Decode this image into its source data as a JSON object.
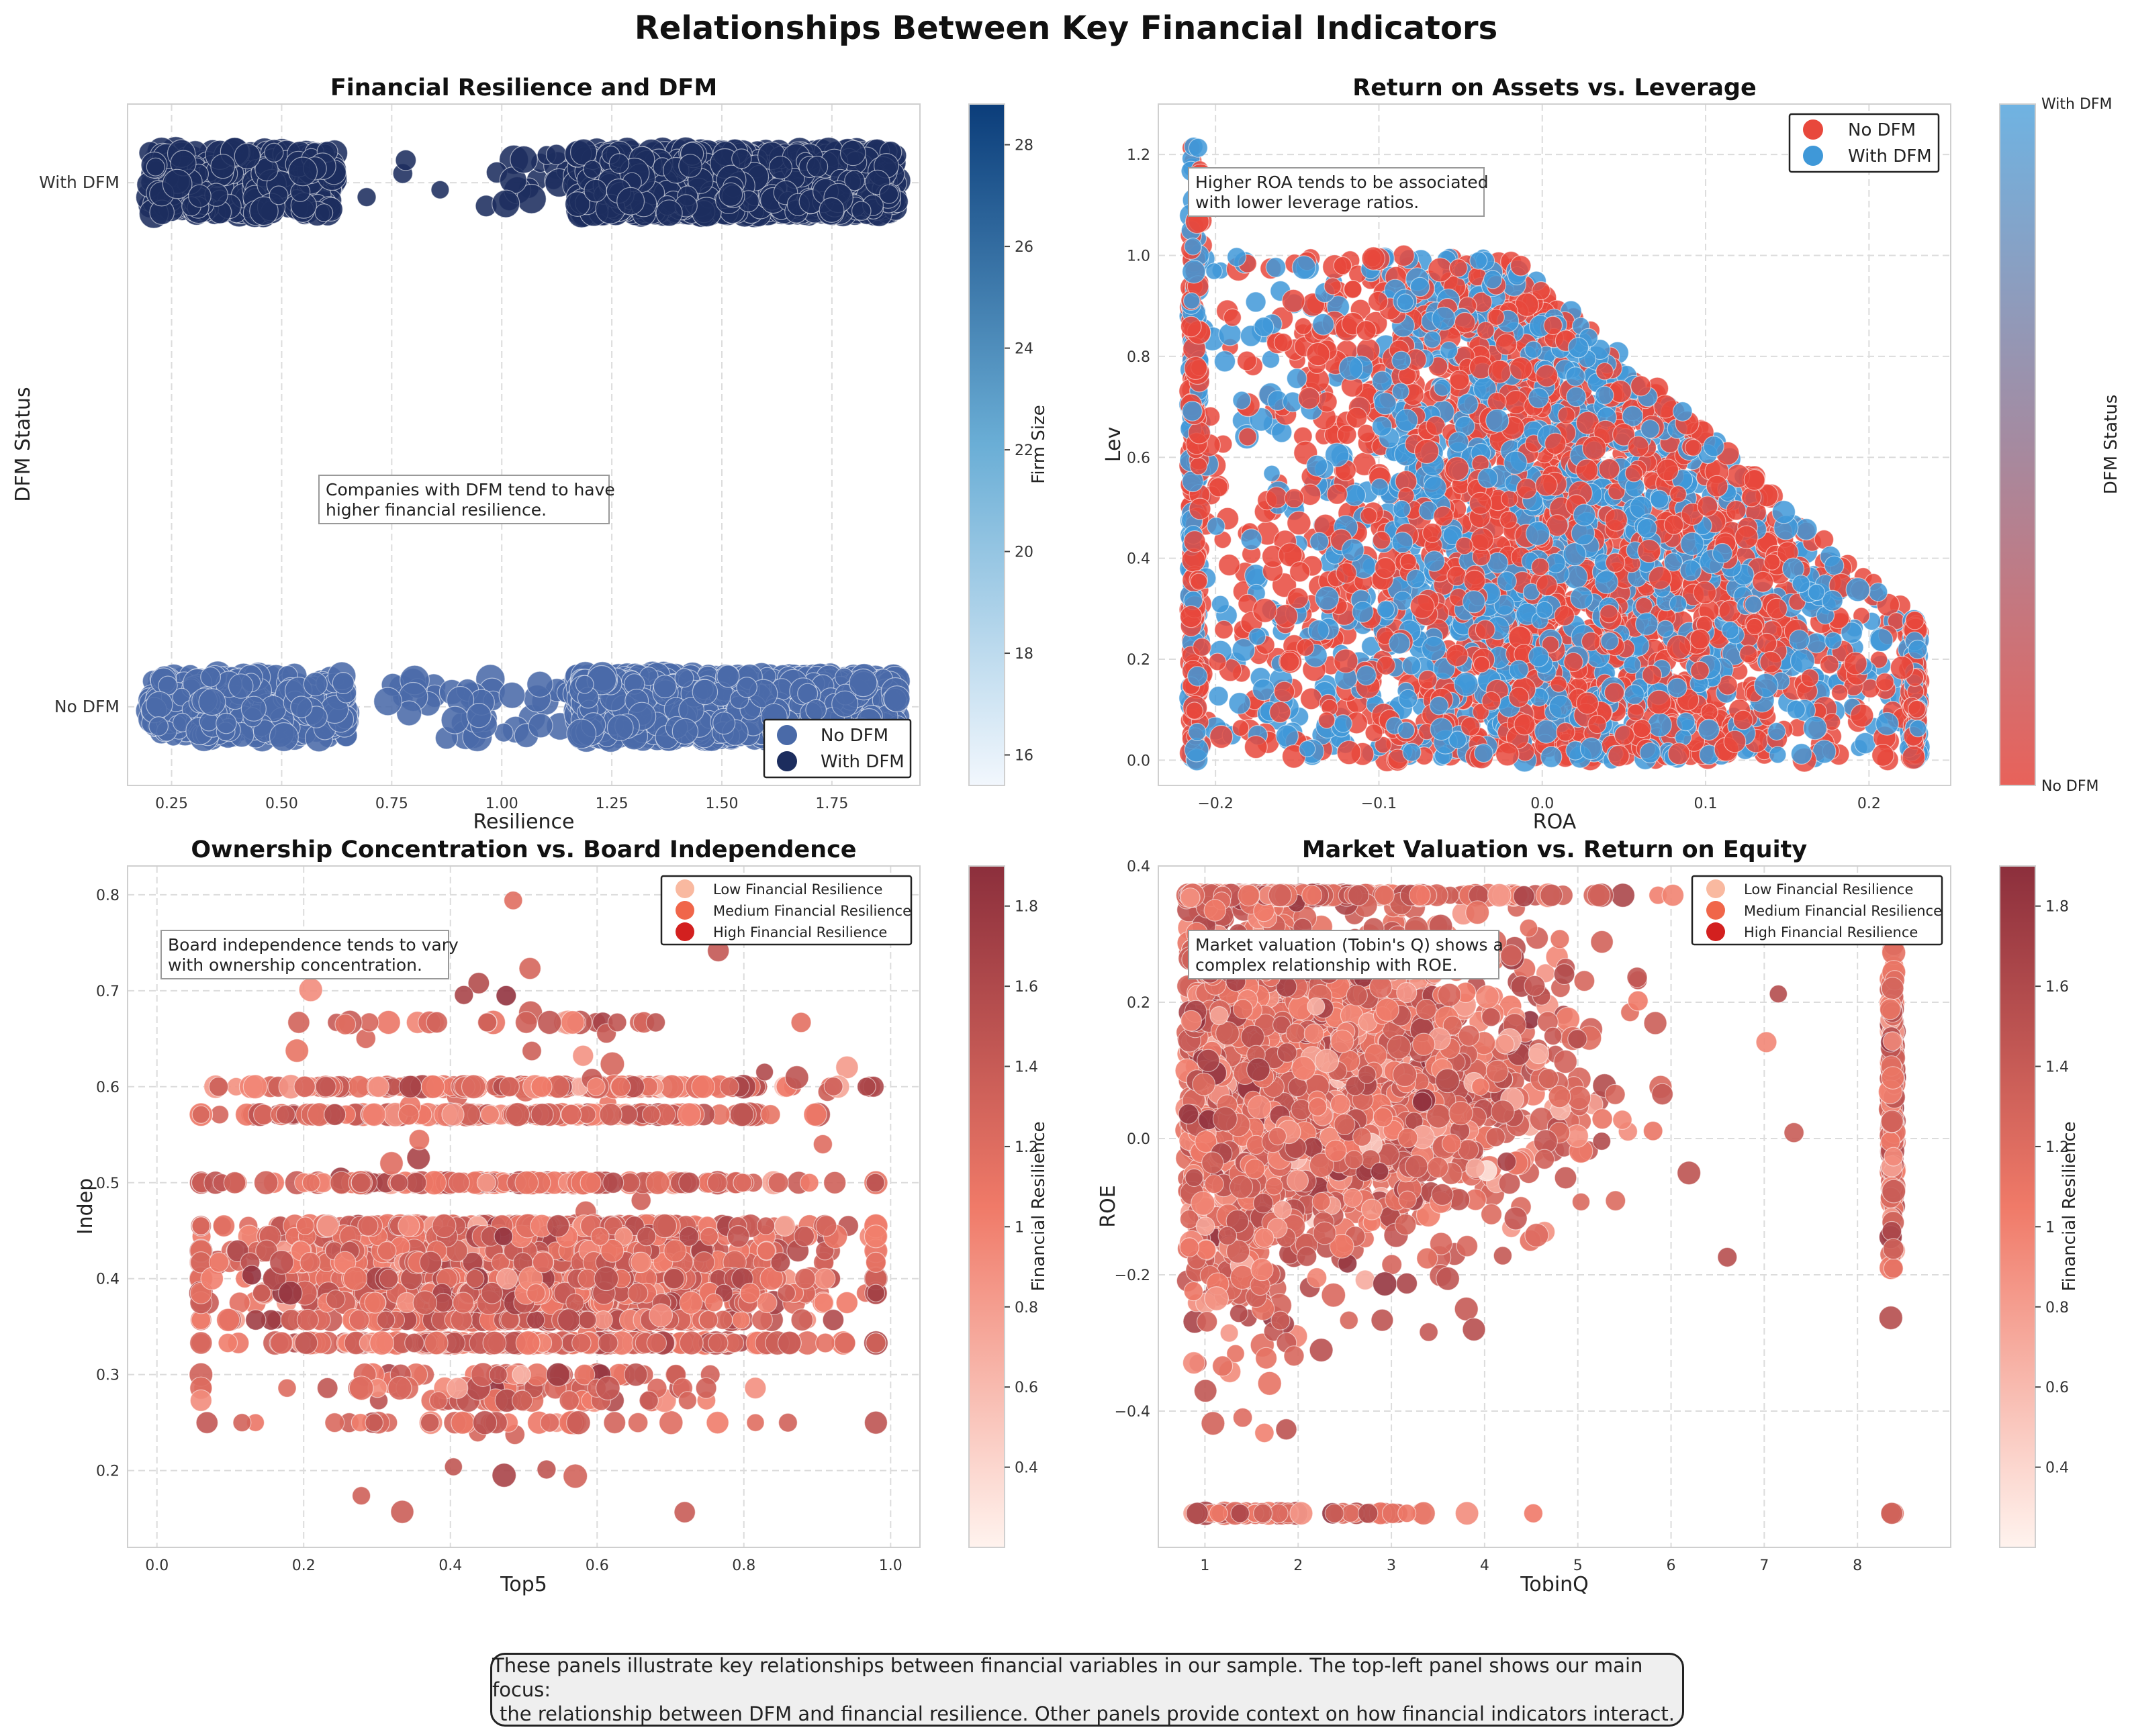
{
  "title": "Relationships Between Key Financial Indicators",
  "footer": {
    "line1": "These panels illustrate key relationships between financial variables in our sample. The top-left panel shows our main focus:",
    "line2": "the relationship between DFM and financial resilience. Other panels provide context on how financial indicators interact."
  },
  "colors": {
    "no_dfm_blue": "#4a6aa8",
    "with_dfm_navy": "#1c2d5e",
    "roa_no_dfm_red": "#e8483c",
    "roa_with_dfm_blue": "#3f98d8",
    "resilience_red": "#d32f2f"
  },
  "chart_data": [
    {
      "id": "tl",
      "type": "scatter",
      "title": "Financial Resilience and DFM",
      "xlabel": "Resilience",
      "ylabel": "DFM Status",
      "xlim": [
        0.15,
        1.95
      ],
      "ylim": [
        -0.15,
        1.15
      ],
      "xticks": [
        0.25,
        0.5,
        0.75,
        1.0,
        1.25,
        1.5,
        1.75
      ],
      "xtick_labels": [
        "0.25",
        "0.50",
        "0.75",
        "1.00",
        "1.25",
        "1.50",
        "1.75"
      ],
      "yticks": [
        0,
        1
      ],
      "ytick_labels": [
        "No DFM",
        "With DFM"
      ],
      "grid": true,
      "series": [
        {
          "name": "No DFM",
          "color": "#4a6aa8",
          "y": 0,
          "clusters": [
            {
              "x": [
                0.2,
                0.65
              ],
              "count": 400
            },
            {
              "x": [
                0.72,
                1.15
              ],
              "count": 45
            },
            {
              "x": [
                1.17,
                1.9
              ],
              "count": 1200
            }
          ]
        },
        {
          "name": "With DFM",
          "color": "#1c2d5e",
          "y": 1,
          "clusters": [
            {
              "x": [
                0.2,
                0.62
              ],
              "count": 400
            },
            {
              "x": [
                0.66,
                1.15
              ],
              "count": 22
            },
            {
              "x": [
                1.17,
                1.9
              ],
              "count": 1300
            }
          ]
        }
      ],
      "legend": {
        "placement": "lower-right",
        "entries": [
          "No DFM",
          "With DFM"
        ]
      },
      "colorbar": {
        "label": "Firm Size",
        "range": [
          15.4,
          28.8
        ],
        "ticks": [
          16,
          18,
          20,
          22,
          24,
          26,
          28
        ],
        "colors": [
          "#f2f7fd",
          "#0b3d7a"
        ]
      },
      "annotation": {
        "line1": "Companies with DFM tend to have",
        "line2": "higher financial resilience."
      }
    },
    {
      "id": "tr",
      "type": "scatter",
      "title": "Return on Assets vs. Leverage",
      "xlabel": "ROA",
      "ylabel": "Lev",
      "xlim": [
        -0.235,
        0.25
      ],
      "ylim": [
        -0.05,
        1.3
      ],
      "xticks": [
        -0.2,
        -0.1,
        0.0,
        0.1,
        0.2
      ],
      "xtick_labels": [
        "−0.2",
        "−0.1",
        "0.0",
        "0.1",
        "0.2"
      ],
      "yticks": [
        0.0,
        0.2,
        0.4,
        0.6,
        0.8,
        1.0,
        1.2
      ],
      "ytick_labels": [
        "0.0",
        "0.2",
        "0.4",
        "0.6",
        "0.8",
        "1.0",
        "1.2"
      ],
      "grid": true,
      "series": [
        {
          "name": "No DFM",
          "color": "#e8483c",
          "count": 1900
        },
        {
          "name": "With DFM",
          "color": "#3f98d8",
          "count": 1500
        }
      ],
      "legend": {
        "placement": "upper-right",
        "entries": [
          "No DFM",
          "With DFM"
        ]
      },
      "colorbar": {
        "label": "DFM Status",
        "range": [
          0,
          1
        ],
        "tick_labels": [
          "No DFM",
          "With DFM"
        ],
        "colors": [
          "#e8625a",
          "#6fb3e2"
        ]
      },
      "annotation": {
        "line1": "Higher ROA tends to be associated",
        "line2": "with lower leverage ratios."
      }
    },
    {
      "id": "bl",
      "type": "scatter",
      "title": "Ownership Concentration vs. Board Independence",
      "xlabel": "Top5",
      "ylabel": "Indep",
      "xlim": [
        -0.04,
        1.04
      ],
      "ylim": [
        0.12,
        0.83
      ],
      "xticks": [
        0.0,
        0.2,
        0.4,
        0.6,
        0.8,
        1.0
      ],
      "xtick_labels": [
        "0.0",
        "0.2",
        "0.4",
        "0.6",
        "0.8",
        "1.0"
      ],
      "yticks": [
        0.2,
        0.3,
        0.4,
        0.5,
        0.6,
        0.7,
        0.8
      ],
      "ytick_labels": [
        "0.2",
        "0.3",
        "0.4",
        "0.5",
        "0.6",
        "0.7",
        "0.8"
      ],
      "grid": true,
      "indep_levels": [
        0.333,
        0.357,
        0.375,
        0.385,
        0.4,
        0.417,
        0.429,
        0.444,
        0.455,
        0.5,
        0.571,
        0.6
      ],
      "series": [
        {
          "name": "Financial Resilience",
          "count": 2400
        }
      ],
      "legend": {
        "placement": "upper-right",
        "entries": [
          "Low Financial Resilience",
          "Medium Financial Resilience",
          "High Financial Resilience"
        ],
        "colors": [
          "#f9b9a0",
          "#f0664a",
          "#d3201f"
        ]
      },
      "colorbar": {
        "label": "Financial Resilience",
        "range": [
          0.2,
          1.9
        ],
        "ticks": [
          0.4,
          0.6,
          0.8,
          1.0,
          1.2,
          1.4,
          1.6,
          1.8
        ],
        "colors": [
          "#fff3ee",
          "#f07a68",
          "#8c2f3c"
        ]
      },
      "annotation": {
        "line1": "Board independence tends to vary",
        "line2": "with ownership concentration."
      }
    },
    {
      "id": "br",
      "type": "scatter",
      "title": "Market Valuation vs. Return on Equity",
      "xlabel": "TobinQ",
      "ylabel": "ROE",
      "xlim": [
        0.5,
        9.0
      ],
      "ylim": [
        -0.6,
        0.4
      ],
      "xticks": [
        1,
        2,
        3,
        4,
        5,
        6,
        7,
        8
      ],
      "xtick_labels": [
        "1",
        "2",
        "3",
        "4",
        "5",
        "6",
        "7",
        "8"
      ],
      "yticks": [
        -0.4,
        -0.2,
        0.0,
        0.2,
        0.4
      ],
      "ytick_labels": [
        "−0.4",
        "−0.2",
        "0.0",
        "0.2",
        "0.4"
      ],
      "grid": true,
      "series": [
        {
          "name": "Financial Resilience",
          "count": 2600
        }
      ],
      "legend": {
        "placement": "upper-right",
        "entries": [
          "Low Financial Resilience",
          "Medium Financial Resilience",
          "High Financial Resilience"
        ],
        "colors": [
          "#f9b9a0",
          "#f0664a",
          "#d3201f"
        ]
      },
      "colorbar": {
        "label": "Financial Resilience",
        "range": [
          0.2,
          1.9
        ],
        "ticks": [
          0.4,
          0.6,
          0.8,
          1.0,
          1.2,
          1.4,
          1.6,
          1.8
        ],
        "colors": [
          "#fff3ee",
          "#f07a68",
          "#8c2f3c"
        ]
      },
      "annotation": {
        "line1": "Market valuation (Tobin's Q) shows a",
        "line2": "complex relationship with ROE."
      }
    }
  ]
}
